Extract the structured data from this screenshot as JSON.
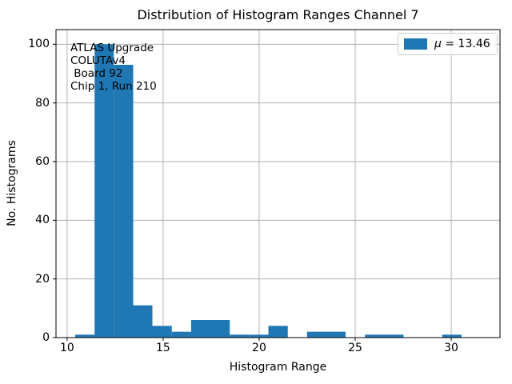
{
  "figure": {
    "annotation": {
      "lines": [
        "ATLAS Upgrade",
        "COLUTAv4",
        " Board 92",
        "Chip 1, Run 210"
      ]
    },
    "legend": {
      "mu_symbol": "μ",
      "value_text": "= 13.46",
      "swatch_color": "#1f77b4"
    }
  },
  "chart_data": {
    "type": "bar",
    "title": "Distribution of Histogram Ranges Channel 7",
    "xlabel": "Histogram Range",
    "ylabel": "No. Histograms",
    "legend_label": "μ = 13.46",
    "legend_position": "upper right",
    "mean": 13.46,
    "annotation_text": "ATLAS Upgrade\nCOLUTAv4\n Board 92\nChip 1, Run 210",
    "bin_edges": [
      10.42,
      11.43,
      12.43,
      13.44,
      14.44,
      15.45,
      16.46,
      17.46,
      18.47,
      19.47,
      20.48,
      21.49,
      22.49,
      23.5,
      24.5,
      25.51,
      26.52,
      27.52,
      28.53,
      29.53,
      30.54
    ],
    "counts": [
      1,
      100,
      93,
      11,
      4,
      2,
      6,
      6,
      1,
      1,
      4,
      0,
      2,
      2,
      0,
      1,
      1,
      0,
      0,
      1
    ],
    "x_ticks": [
      10,
      15,
      20,
      25,
      30
    ],
    "y_ticks": [
      0,
      20,
      40,
      60,
      80,
      100
    ],
    "xlim": [
      9.42,
      32.54
    ],
    "ylim": [
      0,
      105
    ],
    "grid": true,
    "bar_color": "#1f77b4",
    "grid_color": "#b0b0b0"
  }
}
